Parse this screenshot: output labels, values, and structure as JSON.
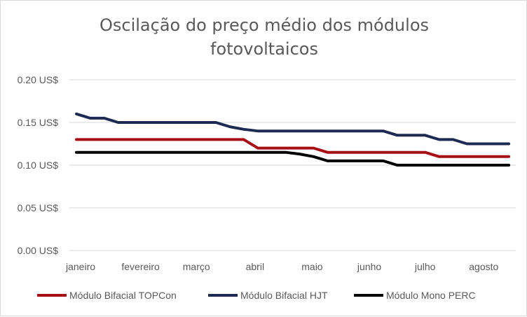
{
  "chart_data": {
    "type": "line",
    "title_line1": "Oscilação do preço médio dos módulos",
    "title_line2": "fotovoltaicos",
    "ytick_labels": [
      "0.00 US$",
      "0.05 US$",
      "0.10 US$",
      "0.15 US$",
      "0.20 US$"
    ],
    "yticks": [
      0,
      0.05,
      0.1,
      0.15,
      0.2
    ],
    "ylim": [
      0,
      0.2
    ],
    "xlim": [
      0,
      32
    ],
    "categories": [
      "janeiro",
      "fevereiro",
      "março",
      "abril",
      "maio",
      "junho",
      "julho",
      "agosto"
    ],
    "category_positions": [
      0,
      4.3,
      8.3,
      12.5,
      16.6,
      20.7,
      24.7,
      28.9
    ],
    "legend_position": "bottom",
    "grid": "horizontal",
    "series": [
      {
        "name": "Módulo Bifacial TOPCon",
        "color": "#a50f15",
        "x": [
          0,
          1,
          2,
          3,
          4,
          5,
          6,
          7,
          8,
          9,
          10,
          11,
          12,
          13,
          14,
          15,
          16,
          17,
          18,
          19,
          20,
          21,
          22,
          23,
          24,
          25,
          26,
          27,
          28,
          29,
          30,
          31
        ],
        "values": [
          0.13,
          0.13,
          0.13,
          0.13,
          0.13,
          0.13,
          0.13,
          0.13,
          0.13,
          0.13,
          0.13,
          0.13,
          0.13,
          0.12,
          0.12,
          0.12,
          0.12,
          0.12,
          0.115,
          0.115,
          0.115,
          0.115,
          0.115,
          0.115,
          0.115,
          0.115,
          0.11,
          0.11,
          0.11,
          0.11,
          0.11,
          0.11
        ]
      },
      {
        "name": "Módulo Bifacial HJT",
        "color": "#1f2a52",
        "x": [
          0,
          1,
          2,
          3,
          4,
          5,
          6,
          7,
          8,
          9,
          10,
          11,
          12,
          13,
          14,
          15,
          16,
          17,
          18,
          19,
          20,
          21,
          22,
          23,
          24,
          25,
          26,
          27,
          28,
          29,
          30,
          31
        ],
        "values": [
          0.16,
          0.155,
          0.155,
          0.15,
          0.15,
          0.15,
          0.15,
          0.15,
          0.15,
          0.15,
          0.15,
          0.145,
          0.142,
          0.14,
          0.14,
          0.14,
          0.14,
          0.14,
          0.14,
          0.14,
          0.14,
          0.14,
          0.14,
          0.135,
          0.135,
          0.135,
          0.13,
          0.13,
          0.125,
          0.125,
          0.125,
          0.125
        ]
      },
      {
        "name": "Módulo Mono PERC",
        "color": "#000000",
        "x": [
          0,
          1,
          2,
          3,
          4,
          5,
          6,
          7,
          8,
          9,
          10,
          11,
          12,
          13,
          14,
          15,
          16,
          17,
          18,
          19,
          20,
          21,
          22,
          23,
          24,
          25,
          26,
          27,
          28,
          29,
          30,
          31
        ],
        "values": [
          0.115,
          0.115,
          0.115,
          0.115,
          0.115,
          0.115,
          0.115,
          0.115,
          0.115,
          0.115,
          0.115,
          0.115,
          0.115,
          0.115,
          0.115,
          0.115,
          0.113,
          0.11,
          0.105,
          0.105,
          0.105,
          0.105,
          0.105,
          0.1,
          0.1,
          0.1,
          0.1,
          0.1,
          0.1,
          0.1,
          0.1,
          0.1
        ]
      }
    ]
  }
}
